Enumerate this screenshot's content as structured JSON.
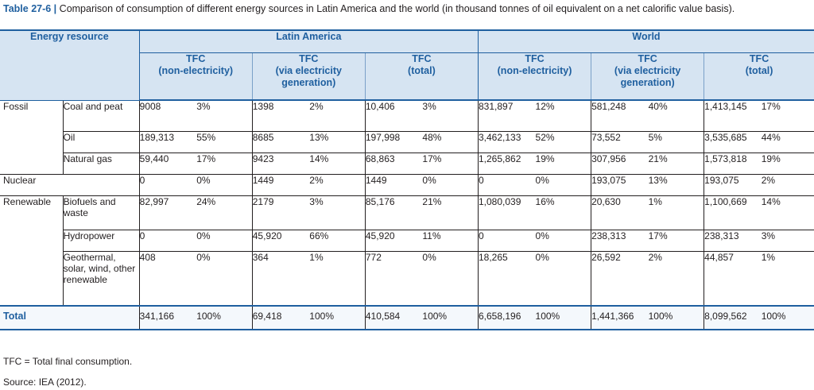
{
  "caption": {
    "label": "Table 27-6 |",
    "text": " Comparison of consumption of different energy sources in Latin America and the world (in thousand tonnes of oil equivalent on a net calorific value basis)."
  },
  "header": {
    "energy_resource": "Energy resource",
    "groups": [
      "Latin America",
      "World"
    ],
    "subcols": [
      "TFC\n(non-electricity)",
      "TFC\n(via electricity\ngeneration)",
      "TFC\n(total)"
    ]
  },
  "rows": [
    {
      "category": "Fossil",
      "resource": "Coal and peat",
      "la": [
        "9008",
        "3%",
        "1398",
        "2%",
        "10,406",
        "3%"
      ],
      "world": [
        "831,897",
        "12%",
        "581,248",
        "40%",
        "1,413,145",
        "17%"
      ]
    },
    {
      "category": "",
      "resource": "Oil",
      "la": [
        "189,313",
        "55%",
        "8685",
        "13%",
        "197,998",
        "48%"
      ],
      "world": [
        "3,462,133",
        "52%",
        "73,552",
        "5%",
        "3,535,685",
        "44%"
      ]
    },
    {
      "category": "",
      "resource": "Natural gas",
      "la": [
        "59,440",
        "17%",
        "9423",
        "14%",
        "68,863",
        "17%"
      ],
      "world": [
        "1,265,862",
        "19%",
        "307,956",
        "21%",
        "1,573,818",
        "19%"
      ]
    },
    {
      "category": "Nuclear",
      "resource": "",
      "la": [
        "0",
        "0%",
        "1449",
        "2%",
        "1449",
        "0%"
      ],
      "world": [
        "0",
        "0%",
        "193,075",
        "13%",
        "193,075",
        "2%"
      ]
    },
    {
      "category": "Renewable",
      "resource": "Biofuels and waste",
      "la": [
        "82,997",
        "24%",
        "2179",
        "3%",
        "85,176",
        "21%"
      ],
      "world": [
        "1,080,039",
        "16%",
        "20,630",
        "1%",
        "1,100,669",
        "14%"
      ]
    },
    {
      "category": "",
      "resource": "Hydropower",
      "la": [
        "0",
        "0%",
        "45,920",
        "66%",
        "45,920",
        "11%"
      ],
      "world": [
        "0",
        "0%",
        "238,313",
        "17%",
        "238,313",
        "3%"
      ]
    },
    {
      "category": "",
      "resource": "Geothermal, solar, wind, other renewable",
      "la": [
        "408",
        "0%",
        "364",
        "1%",
        "772",
        "0%"
      ],
      "world": [
        "18,265",
        "0%",
        "26,592",
        "2%",
        "44,857",
        "1%"
      ]
    }
  ],
  "total": {
    "label": "Total",
    "la": [
      "341,166",
      "100%",
      "69,418",
      "100%",
      "410,584",
      "100%"
    ],
    "world": [
      "6,658,196",
      "100%",
      "1,441,366",
      "100%",
      "8,099,562",
      "100%"
    ]
  },
  "footnotes": {
    "tfc": "TFC = Total final consumption.",
    "source": "Source: IEA (2012)."
  },
  "colors": {
    "header_bg": "#d6e4f2",
    "accent": "#1f5f9f"
  }
}
